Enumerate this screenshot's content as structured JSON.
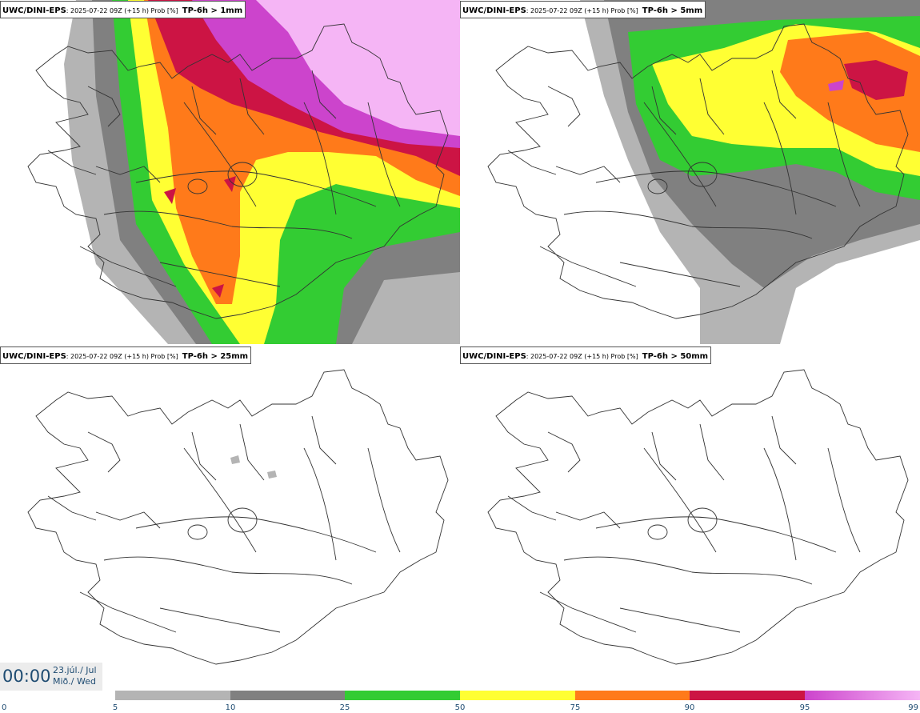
{
  "panels": [
    {
      "model": "UWC/DINI-EPS",
      "run": ": 2025-07-22 09Z (+15 h) Prob [%]",
      "param": "TP-6h > 1mm"
    },
    {
      "model": "UWC/DINI-EPS",
      "run": ": 2025-07-22 09Z (+15 h) Prob [%]",
      "param": "TP-6h > 5mm"
    },
    {
      "model": "UWC/DINI-EPS",
      "run": ": 2025-07-22 09Z (+15 h) Prob [%]",
      "param": "TP-6h > 25mm"
    },
    {
      "model": "UWC/DINI-EPS",
      "run": ": 2025-07-22 09Z (+15 h) Prob [%]",
      "param": "TP-6h > 50mm"
    }
  ],
  "valid_time": {
    "time": "00:00",
    "date_line1": "23.júl./ Jul",
    "date_line2": "Mið./ Wed"
  },
  "legend": {
    "ticks": [
      "0",
      "5",
      "10",
      "25",
      "50",
      "75",
      "90",
      "95",
      "99"
    ],
    "colors": [
      "#ffffff",
      "#b4b4b4",
      "#808080",
      "#33cc33",
      "#ffff33",
      "#ff7a1a",
      "#cc1444",
      "#cc44cc",
      "#f5b5f5"
    ]
  }
}
